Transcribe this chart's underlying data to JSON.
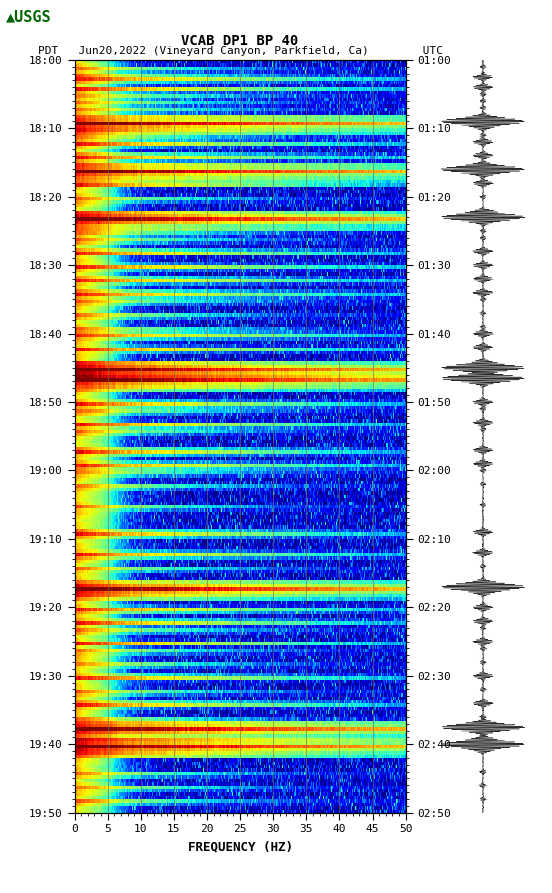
{
  "title_line1": "VCAB DP1 BP 40",
  "title_line2": "PDT   Jun20,2022 (Vineyard Canyon, Parkfield, Ca)        UTC",
  "xlabel": "FREQUENCY (HZ)",
  "freq_min": 0,
  "freq_max": 50,
  "freq_ticks": [
    0,
    5,
    10,
    15,
    20,
    25,
    30,
    35,
    40,
    45,
    50
  ],
  "left_time_labels": [
    "18:00",
    "18:10",
    "18:20",
    "18:30",
    "18:40",
    "18:50",
    "19:00",
    "19:10",
    "19:20",
    "19:30",
    "19:40",
    "19:50"
  ],
  "right_time_labels": [
    "01:00",
    "01:10",
    "01:20",
    "01:30",
    "01:40",
    "01:50",
    "02:00",
    "02:10",
    "02:20",
    "02:30",
    "02:40",
    "02:50"
  ],
  "num_time_steps": 220,
  "num_freq_bins": 400,
  "vertical_lines_freq": [
    5,
    10,
    15,
    20,
    25,
    30,
    35,
    40,
    45
  ],
  "colormap": "jet",
  "background_color": "#ffffff",
  "usgs_logo_color": "#006400",
  "strong_event_rows": [
    18,
    32,
    46,
    90,
    93,
    154,
    195,
    200
  ],
  "medium_event_rows": [
    5,
    8,
    24,
    28,
    36,
    56,
    60,
    64,
    68,
    80,
    84,
    100,
    106,
    114,
    118,
    138,
    144,
    160,
    164,
    170,
    180,
    188
  ],
  "weak_event_rows": [
    2,
    4,
    10,
    12,
    14,
    20,
    22,
    40,
    44,
    50,
    52,
    70,
    74,
    78,
    88,
    102,
    108,
    120,
    124,
    130,
    148,
    156,
    166,
    172,
    176,
    184,
    192,
    198,
    202,
    208,
    212,
    216
  ]
}
